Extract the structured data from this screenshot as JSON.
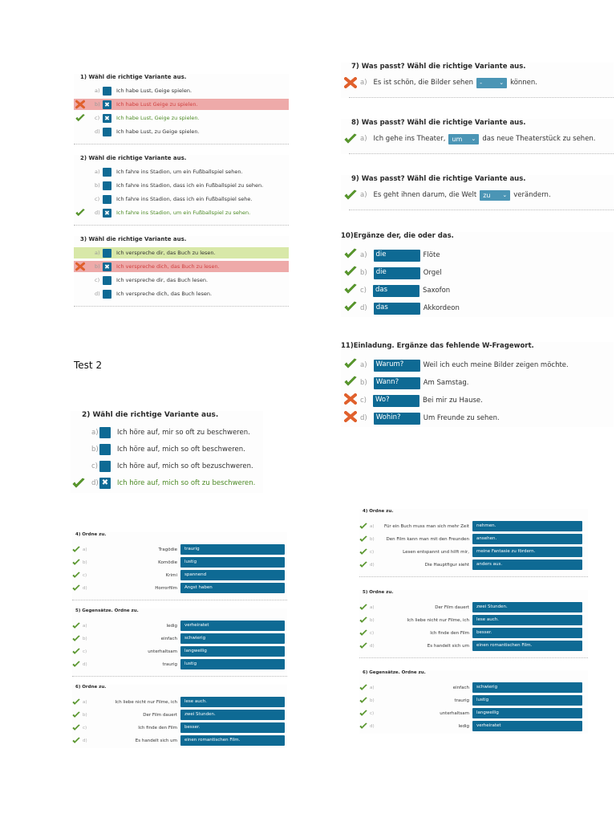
{
  "colors": {
    "accent": "#0e6a94",
    "select": "#4b95b5",
    "correct": "#4d8a25",
    "wrong": "#d04040",
    "wrong_bg": "#eeaaa9",
    "right_bg": "#d8e8a8"
  },
  "mc_top": [
    {
      "title": "1)  Wähl die richtige Variante aus.",
      "options": [
        {
          "letter": "a)",
          "text": "Ich habe Lust, Geige spielen.",
          "checked": false,
          "mark": "",
          "state": ""
        },
        {
          "letter": "b)",
          "text": "Ich habe Lust Geige zu spielen.",
          "checked": true,
          "mark": "cross",
          "state": "wrong"
        },
        {
          "letter": "c)",
          "text": "Ich habe Lust, Geige zu spielen.",
          "checked": true,
          "mark": "check",
          "state": "correct-text"
        },
        {
          "letter": "d)",
          "text": "Ich habe Lust, zu Geige spielen.",
          "checked": false,
          "mark": "",
          "state": ""
        }
      ]
    },
    {
      "title": "2)  Wähl die richtige Variante aus.",
      "options": [
        {
          "letter": "a)",
          "text": "Ich fahre ins Stadion, um ein Fußballspiel sehen.",
          "checked": false,
          "mark": "",
          "state": ""
        },
        {
          "letter": "b)",
          "text": "Ich fahre ins Stadion, dass ich ein Fußballspiel zu sehen.",
          "checked": false,
          "mark": "",
          "state": ""
        },
        {
          "letter": "c)",
          "text": "Ich fahre ins Stadion, dass ich ein Fußballspiel sehe.",
          "checked": false,
          "mark": "",
          "state": ""
        },
        {
          "letter": "d)",
          "text": "Ich fahre ins Stadion, um ein Fußballspiel zu sehen.",
          "checked": true,
          "mark": "check",
          "state": "correct-text"
        }
      ]
    },
    {
      "title": "3)  Wähl die richtige Variante aus.",
      "options": [
        {
          "letter": "a)",
          "text": "Ich verspreche dir, das Buch zu lesen.",
          "checked": false,
          "mark": "",
          "state": "right-green"
        },
        {
          "letter": "b)",
          "text": "Ich verspreche dich, das Buch zu lesen.",
          "checked": true,
          "mark": "cross",
          "state": "wrong"
        },
        {
          "letter": "c)",
          "text": "Ich verspreche dir, das Buch lesen.",
          "checked": false,
          "mark": "",
          "state": ""
        },
        {
          "letter": "d)",
          "text": "Ich verspreche dich, das Buch lesen.",
          "checked": false,
          "mark": "",
          "state": ""
        }
      ]
    }
  ],
  "fill_selects": [
    {
      "title": "7)  Was passt? Wähl die richtige Variante aus.",
      "mark": "cross",
      "letter": "a)",
      "before": "Es ist schön, die Bilder sehen",
      "selected": "-",
      "after": "können."
    },
    {
      "title": "8)  Was passt? Wähl die richtige Variante aus.",
      "mark": "check",
      "letter": "a)",
      "before": "Ich gehe ins Theater,",
      "selected": "um",
      "after": "das neue Theaterstück zu sehen."
    },
    {
      "title": "9)  Was passt? Wähl die richtige Variante aus.",
      "mark": "check",
      "letter": "a)",
      "before": "Es geht ihnen darum, die Welt",
      "selected": "zu",
      "after": "verändern."
    }
  ],
  "fill_boxes": [
    {
      "title": "10)Ergänze der, die oder das.",
      "rows": [
        {
          "mark": "check",
          "letter": "a)",
          "value": "die",
          "text": "Flöte"
        },
        {
          "mark": "check",
          "letter": "b)",
          "value": "die",
          "text": "Orgel"
        },
        {
          "mark": "check",
          "letter": "c)",
          "value": "das",
          "text": "Saxofon"
        },
        {
          "mark": "check",
          "letter": "d)",
          "value": "das",
          "text": "Akkordeon"
        }
      ]
    },
    {
      "title": "11)Einladung. Ergänze das fehlende W-Fragewort.",
      "rows": [
        {
          "mark": "check",
          "letter": "a)",
          "value": "Warum?",
          "text": "Weil ich euch meine Bilder zeigen möchte."
        },
        {
          "mark": "check",
          "letter": "b)",
          "value": "Wann?",
          "text": "Am Samstag."
        },
        {
          "mark": "cross",
          "letter": "c)",
          "value": "Wo?",
          "text": "Bei mir zu Hause."
        },
        {
          "mark": "cross",
          "letter": "d)",
          "value": "Wohin?",
          "text": "Um Freunde zu sehen."
        }
      ]
    }
  ],
  "test2_label": "Test 2",
  "mc_test2": {
    "title": "2)  Wähl die richtige Variante aus.",
    "options": [
      {
        "letter": "a)",
        "text": "Ich höre auf, mir so oft zu beschweren.",
        "checked": false,
        "mark": "",
        "state": ""
      },
      {
        "letter": "b)",
        "text": "Ich höre auf, mich so oft beschweren.",
        "checked": false,
        "mark": "",
        "state": ""
      },
      {
        "letter": "c)",
        "text": "Ich höre auf, mich so oft bezuschweren.",
        "checked": false,
        "mark": "",
        "state": ""
      },
      {
        "letter": "d)",
        "text": "Ich höre auf, mich so oft zu beschweren.",
        "checked": true,
        "mark": "check",
        "state": "correct-text"
      }
    ]
  },
  "match_left": [
    {
      "title": "4)  Ordne zu.",
      "rows": [
        {
          "letter": "a)",
          "left": "Tragödie",
          "answer": "traurig"
        },
        {
          "letter": "b)",
          "left": "Komödie",
          "answer": "lustig"
        },
        {
          "letter": "c)",
          "left": "Krimi",
          "answer": "spannend"
        },
        {
          "letter": "d)",
          "left": "Horrorfilm",
          "answer": "Angst haben"
        }
      ]
    },
    {
      "title": "5)  Gegensätze. Ordne zu.",
      "rows": [
        {
          "letter": "a)",
          "left": "ledig",
          "answer": "verheiratet"
        },
        {
          "letter": "b)",
          "left": "einfach",
          "answer": "schwierig"
        },
        {
          "letter": "c)",
          "left": "unterhaltsam",
          "answer": "langweilig"
        },
        {
          "letter": "d)",
          "left": "traurig",
          "answer": "lustig"
        }
      ]
    },
    {
      "title": "6)  Ordne zu.",
      "rows": [
        {
          "letter": "a)",
          "left": "Ich liebe nicht nur Filme, ich",
          "answer": "lese auch."
        },
        {
          "letter": "b)",
          "left": "Der Film dauert",
          "answer": "zwei Stunden."
        },
        {
          "letter": "c)",
          "left": "Ich finde den Film",
          "answer": "besser."
        },
        {
          "letter": "d)",
          "left": "Es handelt sich um",
          "answer": "einen romantischen Film."
        }
      ]
    }
  ],
  "match_right": [
    {
      "title": "4)  Ordne zu.",
      "rows": [
        {
          "letter": "a)",
          "left": "Für ein Buch muss man sich mehr Zeit",
          "answer": "nehmen."
        },
        {
          "letter": "b)",
          "left": "Den Film kann man mit den Freunden",
          "answer": "ansehen."
        },
        {
          "letter": "c)",
          "left": "Lesen entspannt und hilft mir,",
          "answer": "meine Fantasie zu fördern."
        },
        {
          "letter": "d)",
          "left": "Die Hauptfigur sieht",
          "answer": "anders aus."
        }
      ]
    },
    {
      "title": "5)  Ordne zu.",
      "rows": [
        {
          "letter": "a)",
          "left": "Der Film dauert",
          "answer": "zwei Stunden."
        },
        {
          "letter": "b)",
          "left": "Ich liebe nicht nur Filme, ich",
          "answer": "lese auch."
        },
        {
          "letter": "c)",
          "left": "Ich finde den Film",
          "answer": "besser."
        },
        {
          "letter": "d)",
          "left": "Es handelt sich um",
          "answer": "einen romantischen Film."
        }
      ]
    },
    {
      "title": "6)  Gegensätze. Ordne zu.",
      "rows": [
        {
          "letter": "a)",
          "left": "einfach",
          "answer": "schwierig"
        },
        {
          "letter": "b)",
          "left": "traurig",
          "answer": "lustig"
        },
        {
          "letter": "c)",
          "left": "unterhaltsam",
          "answer": "langweilig"
        },
        {
          "letter": "d)",
          "left": "ledig",
          "answer": "verheiratet"
        }
      ]
    }
  ]
}
